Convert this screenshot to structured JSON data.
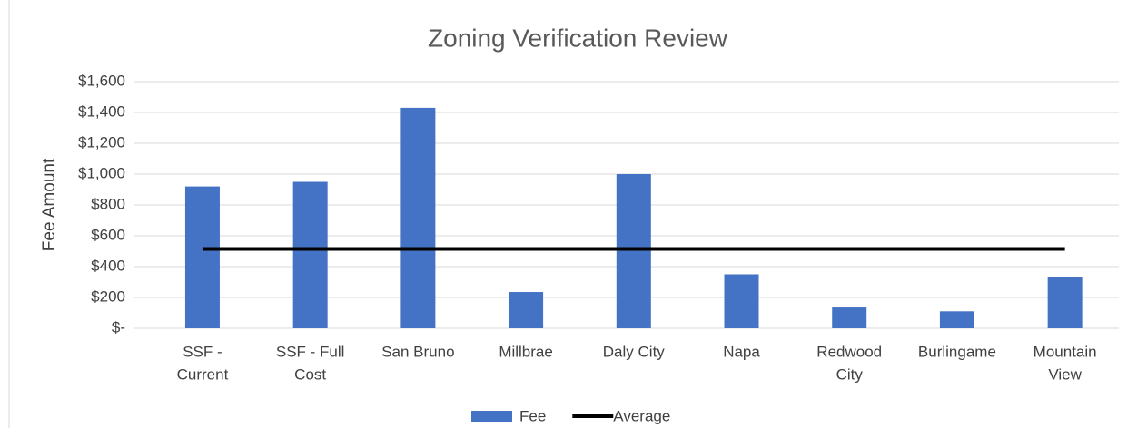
{
  "chart_data": {
    "type": "bar",
    "title": "Zoning Verification Review",
    "y_label": "Fee Amount",
    "categories": [
      [
        "SSF -",
        "Current"
      ],
      [
        "SSF - Full",
        "Cost"
      ],
      [
        "San Bruno"
      ],
      [
        "Millbrae"
      ],
      [
        "Daly City"
      ],
      [
        "Napa"
      ],
      [
        "Redwood",
        "City"
      ],
      [
        "Burlingame"
      ],
      [
        "Mountain",
        "View"
      ]
    ],
    "series": [
      {
        "name": "Fee",
        "type": "bar",
        "color": "#4472c4",
        "values": [
          920,
          950,
          1430,
          235,
          1000,
          350,
          135,
          110,
          330
        ]
      },
      {
        "name": "Average",
        "type": "line",
        "color": "#000000",
        "values": [
          515,
          515,
          515,
          515,
          515,
          515,
          515,
          515,
          515
        ]
      }
    ],
    "ylim": [
      0,
      1600
    ],
    "yticks": [
      {
        "value": 0,
        "label": "$-"
      },
      {
        "value": 200,
        "label": "$200"
      },
      {
        "value": 400,
        "label": "$400"
      },
      {
        "value": 600,
        "label": "$600"
      },
      {
        "value": 800,
        "label": "$800"
      },
      {
        "value": 1000,
        "label": "$1,000"
      },
      {
        "value": 1200,
        "label": "$1,200"
      },
      {
        "value": 1400,
        "label": "$1,400"
      },
      {
        "value": 1600,
        "label": "$1,600"
      }
    ],
    "grid": true,
    "legend": "bottom"
  }
}
